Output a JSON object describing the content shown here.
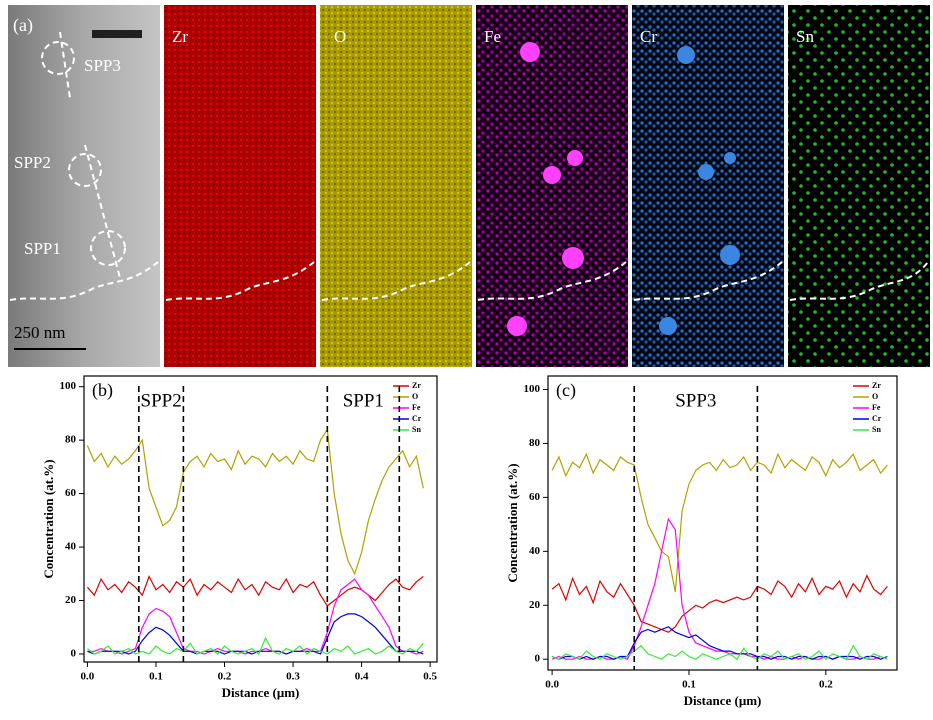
{
  "panel_a": {
    "label": "(a)",
    "maps": [
      "Zr",
      "O",
      "Fe",
      "Cr",
      "Sn"
    ],
    "spp_labels": [
      "SPP3",
      "SPP2",
      "SPP1"
    ],
    "scale_bar": "250 nm"
  },
  "chart_data": [
    {
      "type": "line",
      "panel_label": "(b)",
      "x_label": "Distance (μm)",
      "y_label": "Concentration (at.%)",
      "xlim": [
        -0.005,
        0.51
      ],
      "ylim": [
        -3,
        104
      ],
      "xticks": [
        {
          "value": 0,
          "label": "0.0"
        },
        0.1,
        0.2,
        0.3,
        0.4,
        0.5
      ],
      "yticks": [
        0,
        20,
        40,
        60,
        80,
        100
      ],
      "vlines": [
        0.075,
        0.14,
        0.35,
        0.455
      ],
      "annotations": [
        "SPP2",
        "SPP1"
      ],
      "x": [
        0,
        0.01,
        0.02,
        0.03,
        0.04,
        0.05,
        0.06,
        0.07,
        0.08,
        0.09,
        0.1,
        0.11,
        0.12,
        0.13,
        0.14,
        0.15,
        0.16,
        0.17,
        0.18,
        0.19,
        0.2,
        0.21,
        0.22,
        0.23,
        0.24,
        0.25,
        0.26,
        0.27,
        0.28,
        0.29,
        0.3,
        0.31,
        0.32,
        0.33,
        0.34,
        0.35,
        0.36,
        0.37,
        0.38,
        0.39,
        0.4,
        0.41,
        0.42,
        0.43,
        0.44,
        0.45,
        0.46,
        0.47,
        0.48,
        0.49
      ],
      "series": [
        {
          "name": "Zr",
          "color": "#e00000",
          "values": [
            25,
            22,
            28,
            24,
            26,
            23,
            27,
            25,
            22,
            29,
            24,
            26,
            23,
            27,
            25,
            28,
            22,
            26,
            24,
            27,
            25,
            23,
            28,
            24,
            26,
            22,
            27,
            25,
            24,
            28,
            23,
            26,
            25,
            27,
            22,
            18,
            20,
            22,
            24,
            25,
            24,
            22,
            20,
            23,
            26,
            28,
            25,
            24,
            27,
            29
          ]
        },
        {
          "name": "O",
          "color": "#b3a000",
          "values": [
            78,
            72,
            75,
            70,
            74,
            71,
            73,
            76,
            80,
            62,
            55,
            48,
            50,
            55,
            68,
            72,
            74,
            70,
            75,
            72,
            73,
            69,
            76,
            71,
            74,
            73,
            70,
            75,
            72,
            74,
            71,
            76,
            73,
            72,
            80,
            84,
            60,
            45,
            35,
            30,
            38,
            50,
            58,
            65,
            70,
            73,
            76,
            70,
            74,
            62
          ]
        },
        {
          "name": "Fe",
          "color": "#ff00ff",
          "values": [
            1,
            1,
            2,
            1,
            1,
            0,
            1,
            2,
            10,
            15,
            17,
            16,
            14,
            8,
            2,
            1,
            1,
            0,
            1,
            2,
            1,
            1,
            1,
            0,
            1,
            1,
            2,
            1,
            1,
            0,
            1,
            1,
            2,
            1,
            1,
            8,
            18,
            24,
            26,
            28,
            24,
            22,
            18,
            14,
            10,
            3,
            1,
            1,
            0,
            1
          ]
        },
        {
          "name": "Cr",
          "color": "#0000dd",
          "values": [
            1,
            0,
            1,
            1,
            1,
            1,
            0,
            1,
            5,
            8,
            10,
            9,
            7,
            4,
            1,
            1,
            0,
            1,
            1,
            1,
            0,
            1,
            1,
            1,
            0,
            1,
            1,
            1,
            1,
            0,
            1,
            1,
            1,
            1,
            0,
            6,
            12,
            14,
            15,
            15,
            14,
            12,
            10,
            7,
            4,
            1,
            1,
            1,
            1,
            0
          ]
        },
        {
          "name": "Sn",
          "color": "#33ee33",
          "values": [
            2,
            0,
            1,
            3,
            0,
            1,
            2,
            0,
            1,
            0,
            3,
            1,
            0,
            2,
            1,
            4,
            0,
            1,
            2,
            0,
            3,
            1,
            0,
            1,
            2,
            0,
            6,
            1,
            0,
            2,
            1,
            3,
            0,
            2,
            1,
            0,
            2,
            1,
            3,
            0,
            1,
            2,
            0,
            1,
            3,
            1,
            0,
            2,
            1,
            4
          ]
        }
      ]
    },
    {
      "type": "line",
      "panel_label": "(c)",
      "x_label": "Distance (μm)",
      "y_label": "Concentration (at.%)",
      "xlim": [
        -0.003,
        0.252
      ],
      "ylim": [
        -4,
        105
      ],
      "xticks": [
        {
          "value": 0,
          "label": "0.0"
        },
        0.1,
        0.2
      ],
      "yticks": [
        0,
        20,
        40,
        60,
        80,
        100
      ],
      "vlines": [
        0.06,
        0.15
      ],
      "annotations": [
        "SPP3"
      ],
      "x": [
        0,
        0.005,
        0.01,
        0.015,
        0.02,
        0.025,
        0.03,
        0.035,
        0.04,
        0.045,
        0.05,
        0.055,
        0.06,
        0.065,
        0.07,
        0.075,
        0.08,
        0.085,
        0.09,
        0.095,
        0.1,
        0.105,
        0.11,
        0.115,
        0.12,
        0.125,
        0.13,
        0.135,
        0.14,
        0.145,
        0.15,
        0.155,
        0.16,
        0.165,
        0.17,
        0.175,
        0.18,
        0.185,
        0.19,
        0.195,
        0.2,
        0.205,
        0.21,
        0.215,
        0.22,
        0.225,
        0.23,
        0.235,
        0.24,
        0.245
      ],
      "series": [
        {
          "name": "Zr",
          "color": "#e00000",
          "values": [
            26,
            28,
            22,
            30,
            24,
            27,
            21,
            29,
            25,
            23,
            28,
            24,
            20,
            14,
            13,
            12,
            11,
            10,
            12,
            16,
            18,
            20,
            19,
            21,
            22,
            21,
            22,
            23,
            22,
            23,
            27,
            26,
            24,
            29,
            27,
            23,
            28,
            25,
            30,
            24,
            27,
            26,
            29,
            23,
            28,
            25,
            31,
            26,
            24,
            27
          ]
        },
        {
          "name": "O",
          "color": "#b3a000",
          "values": [
            70,
            75,
            68,
            73,
            71,
            76,
            69,
            74,
            72,
            70,
            75,
            73,
            72,
            60,
            50,
            45,
            40,
            38,
            25,
            55,
            65,
            70,
            72,
            73,
            70,
            74,
            71,
            72,
            75,
            70,
            73,
            72,
            69,
            76,
            71,
            74,
            72,
            70,
            75,
            73,
            68,
            74,
            71,
            73,
            76,
            70,
            72,
            74,
            69,
            72
          ]
        },
        {
          "name": "Fe",
          "color": "#ff00ff",
          "values": [
            0,
            1,
            0,
            0,
            1,
            0,
            0,
            1,
            0,
            0,
            1,
            0,
            5,
            12,
            20,
            28,
            40,
            52,
            48,
            20,
            10,
            6,
            5,
            4,
            3,
            3,
            2,
            2,
            2,
            1,
            1,
            0,
            1,
            0,
            0,
            1,
            0,
            1,
            0,
            0,
            1,
            0,
            1,
            0,
            0,
            1,
            0,
            0,
            1,
            0
          ]
        },
        {
          "name": "Cr",
          "color": "#0000dd",
          "values": [
            1,
            0,
            1,
            1,
            0,
            1,
            0,
            1,
            1,
            0,
            1,
            1,
            6,
            10,
            11,
            10,
            11,
            12,
            10,
            9,
            8,
            9,
            7,
            5,
            4,
            3,
            3,
            2,
            2,
            2,
            1,
            1,
            0,
            1,
            1,
            0,
            1,
            1,
            0,
            1,
            1,
            0,
            1,
            1,
            1,
            0,
            1,
            1,
            0,
            1
          ]
        },
        {
          "name": "Sn",
          "color": "#33ee33",
          "values": [
            1,
            0,
            2,
            1,
            0,
            3,
            1,
            0,
            2,
            1,
            0,
            1,
            3,
            5,
            2,
            1,
            0,
            2,
            1,
            3,
            1,
            0,
            2,
            1,
            0,
            1,
            2,
            0,
            4,
            1,
            0,
            2,
            1,
            3,
            0,
            1,
            2,
            0,
            1,
            3,
            0,
            2,
            1,
            0,
            5,
            1,
            0,
            2,
            1,
            0
          ]
        }
      ]
    }
  ]
}
